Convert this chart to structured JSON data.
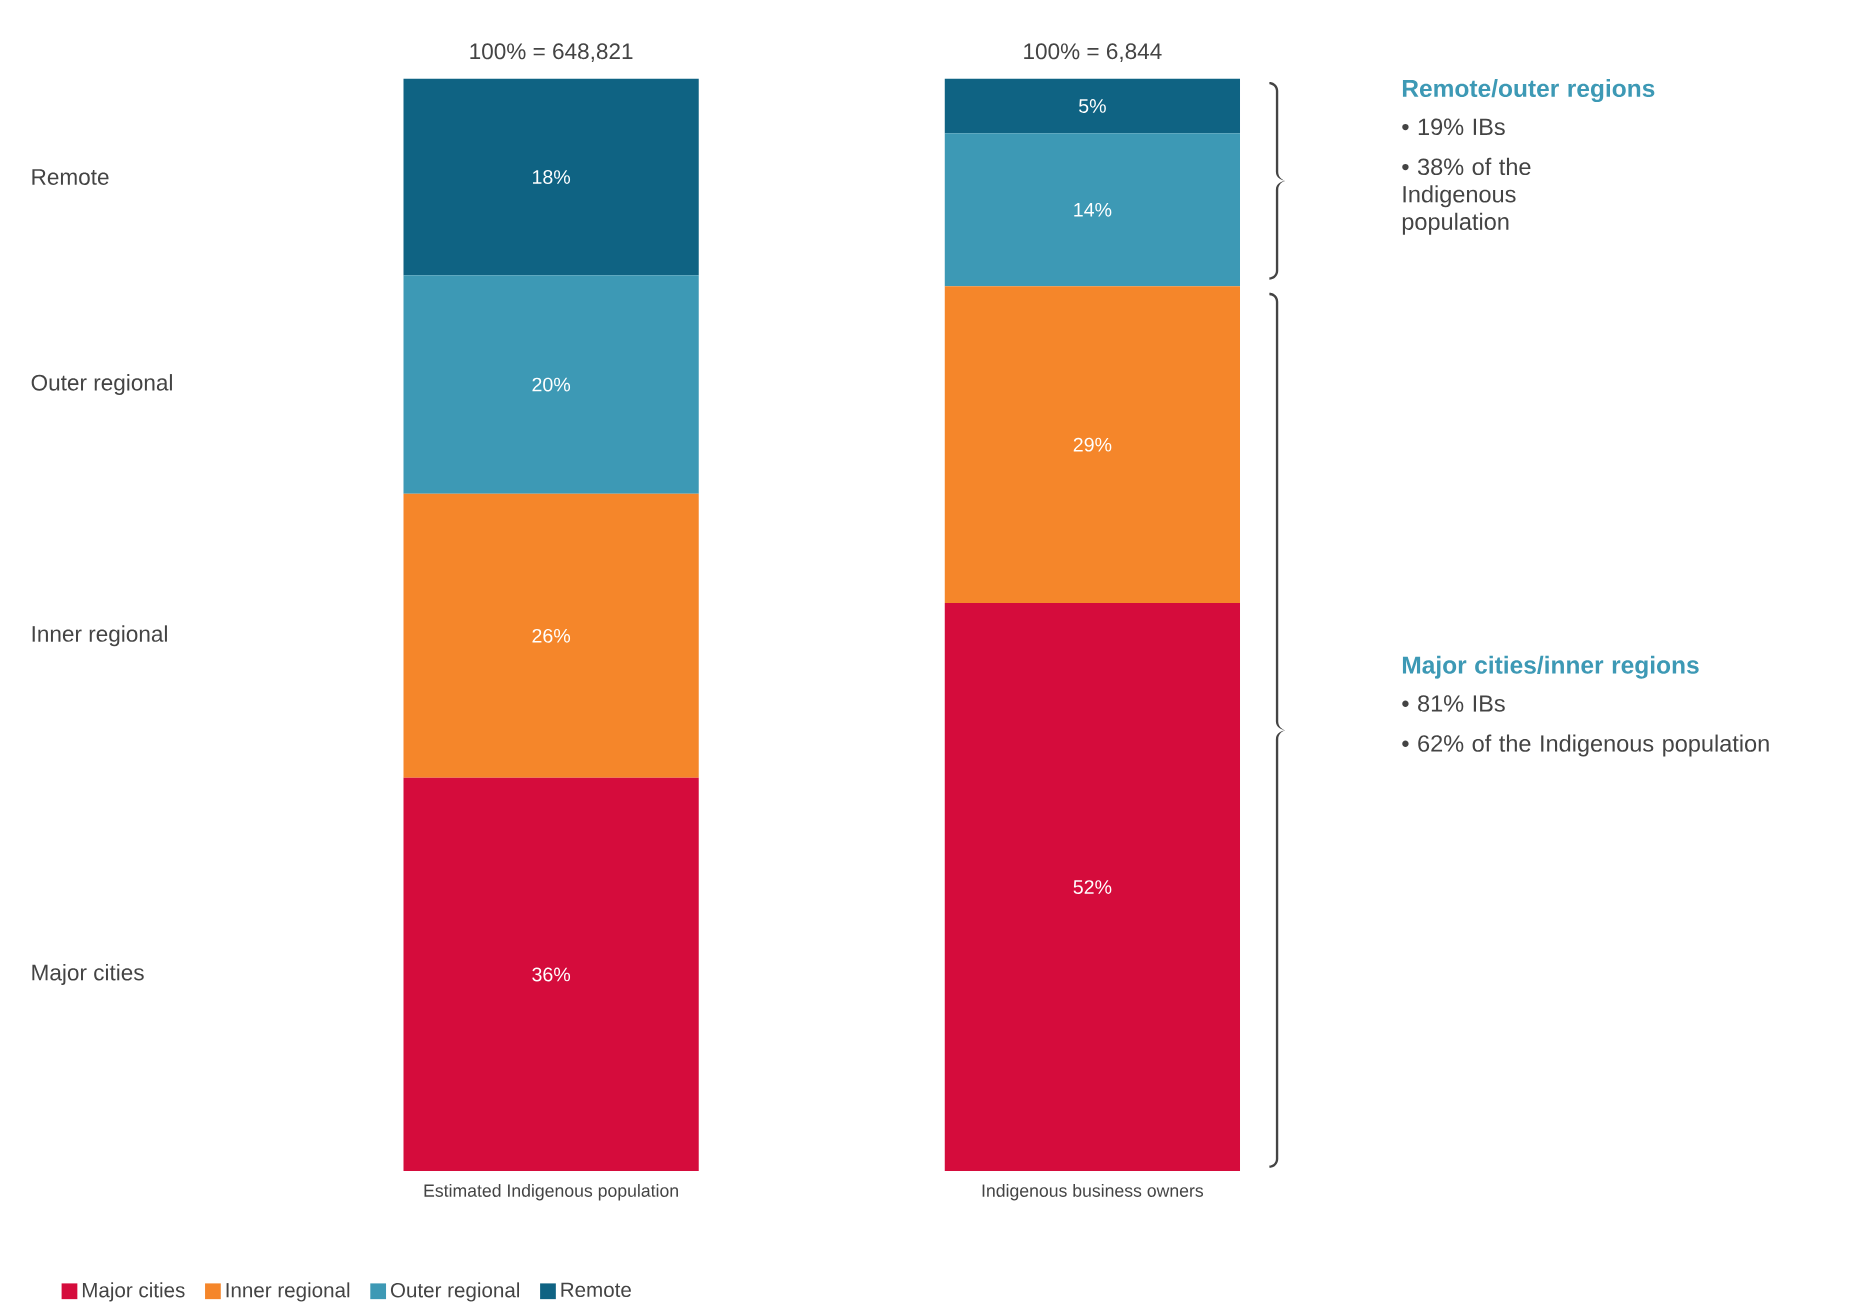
{
  "chart_data": {
    "type": "bar",
    "stacked": true,
    "categories": [
      "Estimated Indigenous population",
      "Indigenous business owners"
    ],
    "series": [
      {
        "name": "Major cities",
        "color": "#d50c3c",
        "values": [
          36,
          52
        ],
        "value_labels": [
          "36%",
          "52%"
        ]
      },
      {
        "name": "Inner regional",
        "color": "#f5862a",
        "values": [
          26,
          29
        ],
        "value_labels": [
          "26%",
          "29%"
        ]
      },
      {
        "name": "Outer regional",
        "color": "#3d99b5",
        "values": [
          20,
          14
        ],
        "value_labels": [
          "20%",
          "14%"
        ]
      },
      {
        "name": "Remote",
        "color": "#0f6383",
        "values": [
          18,
          5
        ],
        "value_labels": [
          "18%",
          "5%"
        ]
      }
    ],
    "totals": [
      "100% = 648,821",
      "100% = 6,844"
    ],
    "legend": "bottom",
    "annotations": [
      "Remote/outer regions",
      "• 19% IBs",
      "• 38% of the Indigenous population",
      "Major cities/inner regions",
      "• 81% IBs",
      "• 62% of the Indigenous population"
    ]
  }
}
